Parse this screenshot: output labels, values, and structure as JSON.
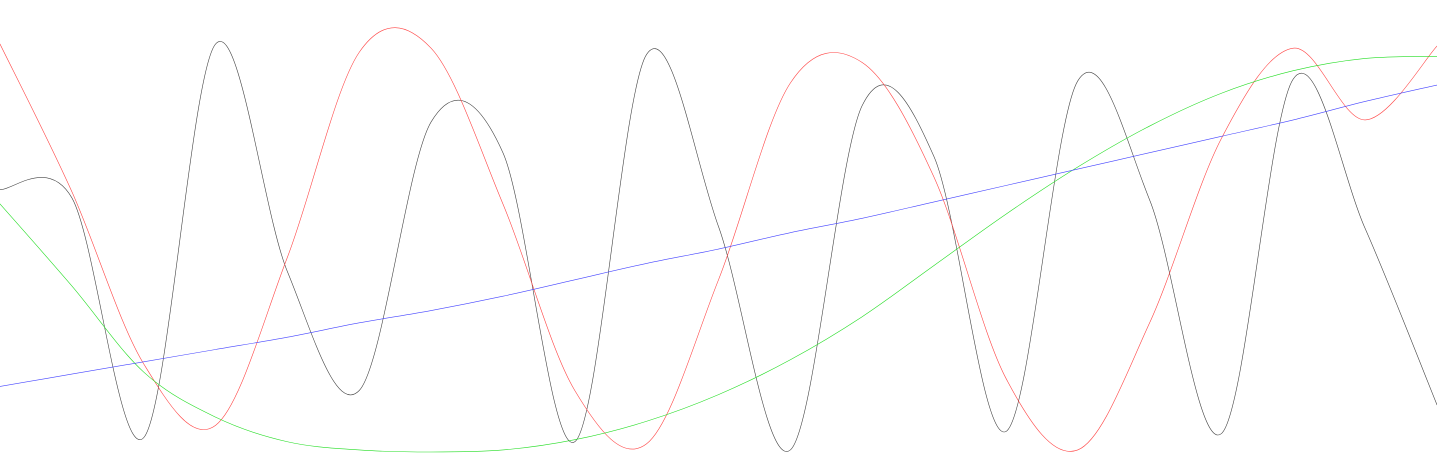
{
  "chart_data": {
    "type": "line",
    "title": "",
    "xlabel": "",
    "ylabel": "",
    "grid": false,
    "legend": "none",
    "xlim": [
      0,
      1
    ],
    "ylim": [
      -1,
      1
    ],
    "x": [
      0,
      0.05,
      0.1,
      0.15,
      0.2,
      0.25,
      0.3,
      0.35,
      0.4,
      0.45,
      0.5,
      0.55,
      0.6,
      0.65,
      0.7,
      0.75,
      0.8,
      0.85,
      0.9,
      0.95,
      1
    ],
    "series": [
      {
        "key": "black",
        "color": "#444444",
        "values": [
          0.28,
          0.24,
          -0.93,
          0.99,
          -0.12,
          -0.7,
          0.61,
          0.46,
          -0.95,
          0.94,
          0.1,
          -0.99,
          0.69,
          0.44,
          -0.9,
          0.81,
          0.23,
          -0.91,
          0.82,
          0.09,
          -0.77
        ]
      },
      {
        "key": "red",
        "color": "#ff4444",
        "values": [
          0.99,
          0.27,
          -0.57,
          -0.87,
          -0.05,
          0.95,
          0.97,
          0.21,
          -0.7,
          -0.96,
          -0.16,
          0.8,
          0.9,
          0.34,
          -0.64,
          -0.99,
          -0.37,
          0.53,
          0.97,
          0.62,
          0.98
        ]
      },
      {
        "key": "green",
        "color": "#22dd22",
        "values": [
          0.21,
          -0.19,
          -0.61,
          -0.83,
          -0.95,
          -0.99,
          -1.0,
          -0.99,
          -0.94,
          -0.85,
          -0.72,
          -0.55,
          -0.34,
          -0.09,
          0.16,
          0.39,
          0.59,
          0.75,
          0.86,
          0.92,
          0.93
        ]
      },
      {
        "key": "blue",
        "color": "#4444ff",
        "values": [
          -0.68,
          -0.62,
          -0.56,
          -0.5,
          -0.44,
          -0.37,
          -0.31,
          -0.24,
          -0.16,
          -0.08,
          -0.01,
          0.07,
          0.14,
          0.22,
          0.3,
          0.38,
          0.46,
          0.54,
          0.62,
          0.71,
          0.79
        ]
      }
    ]
  }
}
